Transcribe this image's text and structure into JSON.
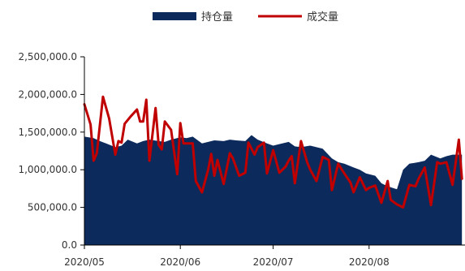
{
  "chart_data": {
    "type": "area",
    "title": "",
    "xlabel": "",
    "ylabel": "",
    "ylim": [
      0,
      2500000
    ],
    "xlim": [
      "2020-05-01",
      "2020-08-31"
    ],
    "grid": false,
    "legend_position": "top-center",
    "y_ticks": [
      0,
      500000,
      1000000,
      1500000,
      2000000,
      2500000
    ],
    "y_tick_labels": [
      "0.0",
      "500,000.0",
      "1,000,000.0",
      "1,500,000.0",
      "2,000,000.0",
      "2,500,000.0"
    ],
    "x_ticks": [
      "2020-05-01",
      "2020-06-01",
      "2020-07-01",
      "2020-08-01"
    ],
    "x_tick_labels": [
      "2020/05",
      "2020/06",
      "2020/07",
      "2020/08"
    ],
    "series": [
      {
        "name": "持仓量",
        "type": "area",
        "color": "#0c2a5b",
        "x": [
          "2020-05-01",
          "2020-05-04",
          "2020-05-06",
          "2020-05-08",
          "2020-05-11",
          "2020-05-13",
          "2020-05-15",
          "2020-05-18",
          "2020-05-20",
          "2020-05-22",
          "2020-05-25",
          "2020-05-27",
          "2020-05-29",
          "2020-06-01",
          "2020-06-03",
          "2020-06-05",
          "2020-06-08",
          "2020-06-10",
          "2020-06-12",
          "2020-06-15",
          "2020-06-17",
          "2020-06-19",
          "2020-06-22",
          "2020-06-24",
          "2020-06-26",
          "2020-06-29",
          "2020-07-01",
          "2020-07-03",
          "2020-07-06",
          "2020-07-08",
          "2020-07-10",
          "2020-07-13",
          "2020-07-15",
          "2020-07-17",
          "2020-07-20",
          "2020-07-22",
          "2020-07-24",
          "2020-07-27",
          "2020-07-29",
          "2020-07-31",
          "2020-08-03",
          "2020-08-05",
          "2020-08-07",
          "2020-08-10",
          "2020-08-12",
          "2020-08-14",
          "2020-08-17",
          "2020-08-19",
          "2020-08-21",
          "2020-08-24",
          "2020-08-26",
          "2020-08-28",
          "2020-08-31"
        ],
        "values": [
          1440000,
          1420000,
          1380000,
          1350000,
          1300000,
          1320000,
          1400000,
          1350000,
          1380000,
          1400000,
          1380000,
          1370000,
          1400000,
          1430000,
          1420000,
          1440000,
          1350000,
          1370000,
          1390000,
          1380000,
          1400000,
          1390000,
          1380000,
          1460000,
          1400000,
          1350000,
          1320000,
          1340000,
          1370000,
          1310000,
          1300000,
          1320000,
          1300000,
          1280000,
          1150000,
          1100000,
          1080000,
          1030000,
          1000000,
          950000,
          920000,
          820000,
          780000,
          740000,
          1000000,
          1080000,
          1100000,
          1120000,
          1200000,
          1150000,
          1180000,
          1200000,
          1200000
        ]
      },
      {
        "name": "成交量",
        "type": "line",
        "color": "#c00000",
        "x": [
          "2020-05-01",
          "2020-05-03",
          "2020-05-04",
          "2020-05-05",
          "2020-05-07",
          "2020-05-09",
          "2020-05-11",
          "2020-05-12",
          "2020-05-13",
          "2020-05-14",
          "2020-05-16",
          "2020-05-18",
          "2020-05-19",
          "2020-05-20",
          "2020-05-21",
          "2020-05-22",
          "2020-05-24",
          "2020-05-25",
          "2020-05-26",
          "2020-05-27",
          "2020-05-29",
          "2020-05-31",
          "2020-06-01",
          "2020-06-02",
          "2020-06-04",
          "2020-06-05",
          "2020-06-06",
          "2020-06-08",
          "2020-06-10",
          "2020-06-11",
          "2020-06-12",
          "2020-06-13",
          "2020-06-15",
          "2020-06-17",
          "2020-06-18",
          "2020-06-20",
          "2020-06-22",
          "2020-06-23",
          "2020-06-25",
          "2020-06-26",
          "2020-06-28",
          "2020-06-29",
          "2020-07-01",
          "2020-07-03",
          "2020-07-05",
          "2020-07-06",
          "2020-07-07",
          "2020-07-08",
          "2020-07-10",
          "2020-07-12",
          "2020-07-13",
          "2020-07-15",
          "2020-07-17",
          "2020-07-19",
          "2020-07-20",
          "2020-07-22",
          "2020-07-24",
          "2020-07-26",
          "2020-07-27",
          "2020-07-29",
          "2020-07-31",
          "2020-08-01",
          "2020-08-03",
          "2020-08-05",
          "2020-08-07",
          "2020-08-08",
          "2020-08-10",
          "2020-08-12",
          "2020-08-14",
          "2020-08-16",
          "2020-08-17",
          "2020-08-19",
          "2020-08-21",
          "2020-08-23",
          "2020-08-24",
          "2020-08-26",
          "2020-08-28",
          "2020-08-30",
          "2020-08-31"
        ],
        "values": [
          1870000,
          1600000,
          1120000,
          1220000,
          1970000,
          1680000,
          1200000,
          1380000,
          1360000,
          1610000,
          1710000,
          1800000,
          1640000,
          1640000,
          1930000,
          1120000,
          1820000,
          1330000,
          1270000,
          1640000,
          1530000,
          940000,
          1620000,
          1350000,
          1350000,
          1350000,
          850000,
          700000,
          1000000,
          1210000,
          920000,
          1130000,
          810000,
          1220000,
          1150000,
          920000,
          960000,
          1360000,
          1200000,
          1300000,
          1360000,
          950000,
          1260000,
          960000,
          1040000,
          1120000,
          1180000,
          820000,
          1380000,
          1100000,
          1000000,
          850000,
          1170000,
          1130000,
          730000,
          1080000,
          950000,
          830000,
          700000,
          900000,
          730000,
          760000,
          790000,
          560000,
          850000,
          600000,
          540000,
          500000,
          800000,
          780000,
          880000,
          1030000,
          530000,
          1100000,
          1080000,
          1100000,
          800000,
          1400000,
          880000
        ]
      }
    ]
  }
}
